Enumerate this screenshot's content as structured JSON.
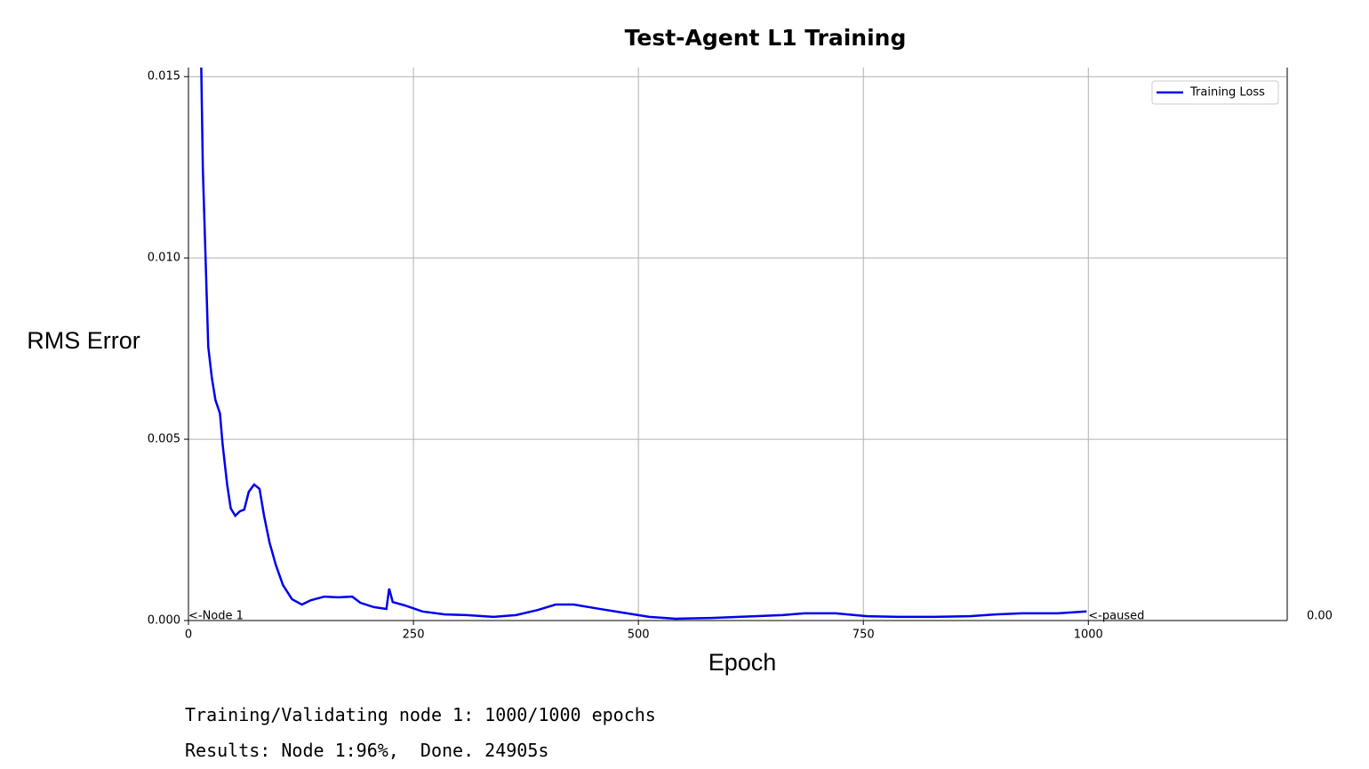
{
  "chart_data": {
    "type": "line",
    "title": "Test-Agent L1 Training",
    "x_label": "Epoch",
    "y_label": "RMS Error",
    "x": [
      14,
      16,
      19,
      22,
      26,
      30,
      35,
      38,
      43,
      47,
      52,
      57,
      62,
      67,
      73,
      79,
      84,
      90,
      97,
      105,
      115,
      126,
      136,
      151,
      166,
      182,
      191,
      206,
      220,
      223,
      227,
      240,
      260,
      285,
      309,
      339,
      364,
      388,
      408,
      428,
      457,
      482,
      512,
      542,
      581,
      630,
      660,
      685,
      719,
      754,
      789,
      828,
      868,
      897,
      927,
      966,
      998
    ],
    "series": [
      {
        "name": "Training Loss",
        "color": "#0000ee",
        "values": [
          0.0156,
          0.01245,
          0.01,
          0.00755,
          0.00669,
          0.00608,
          0.00571,
          0.00485,
          0.00375,
          0.00309,
          0.00289,
          0.00301,
          0.00306,
          0.00355,
          0.00375,
          0.00363,
          0.00289,
          0.00216,
          0.00154,
          0.00098,
          0.00059,
          0.00044,
          0.00056,
          0.00066,
          0.00064,
          0.00066,
          0.00049,
          0.00037,
          0.00032,
          0.00088,
          0.00051,
          0.00042,
          0.00025,
          0.00017,
          0.00015,
          0.0001,
          0.00015,
          0.00029,
          0.00044,
          0.00044,
          0.00032,
          0.00022,
          0.0001,
          5e-05,
          7e-05,
          0.00012,
          0.00015,
          0.0002,
          0.0002,
          0.00012,
          0.0001,
          0.0001,
          0.00012,
          0.00017,
          0.0002,
          0.0002,
          0.00025
        ]
      }
    ],
    "xlim": [
      0,
      1221
    ],
    "xticks": [
      0,
      250,
      500,
      750,
      1000
    ],
    "ylim": [
      0,
      0.01525
    ],
    "yticks": [
      {
        "value": 0,
        "label": "0.000"
      },
      {
        "value": 0.005,
        "label": "0.005"
      },
      {
        "value": 0.01,
        "label": "0.010"
      },
      {
        "value": 0.015,
        "label": "0.015"
      }
    ],
    "grid": true,
    "legend": "upper right",
    "annotations": [
      "<-Node 1",
      "<-paused",
      "0.00"
    ]
  },
  "status": {
    "progress_label": "Training/Validating node 1:",
    "progress": "1000/1000 epochs",
    "results": "Results: Node 1:96%,  Done. 24905s"
  }
}
